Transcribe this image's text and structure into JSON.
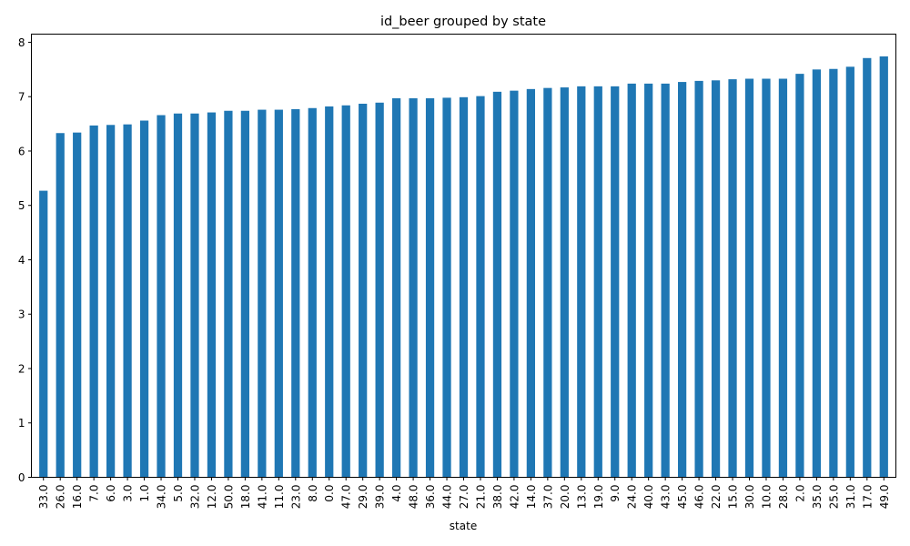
{
  "chart_data": {
    "type": "bar",
    "title": "id_beer grouped by state",
    "xlabel": "state",
    "ylabel": "",
    "ylim": [
      0,
      8.15
    ],
    "yticks": [
      0,
      1,
      2,
      3,
      4,
      5,
      6,
      7,
      8
    ],
    "bar_color": "#1f77b4",
    "grid": false,
    "categories": [
      "33.0",
      "26.0",
      "16.0",
      "7.0",
      "6.0",
      "3.0",
      "1.0",
      "34.0",
      "5.0",
      "32.0",
      "12.0",
      "50.0",
      "18.0",
      "41.0",
      "11.0",
      "23.0",
      "8.0",
      "0.0",
      "47.0",
      "29.0",
      "39.0",
      "4.0",
      "48.0",
      "36.0",
      "44.0",
      "27.0",
      "21.0",
      "38.0",
      "42.0",
      "14.0",
      "37.0",
      "20.0",
      "13.0",
      "19.0",
      "9.0",
      "24.0",
      "40.0",
      "43.0",
      "45.0",
      "46.0",
      "22.0",
      "15.0",
      "30.0",
      "10.0",
      "28.0",
      "2.0",
      "35.0",
      "25.0",
      "31.0",
      "17.0",
      "49.0"
    ],
    "values": [
      5.27,
      6.33,
      6.34,
      6.47,
      6.48,
      6.49,
      6.56,
      6.66,
      6.69,
      6.69,
      6.71,
      6.74,
      6.74,
      6.76,
      6.76,
      6.77,
      6.79,
      6.82,
      6.84,
      6.87,
      6.89,
      6.97,
      6.97,
      6.97,
      6.98,
      6.99,
      7.01,
      7.09,
      7.11,
      7.14,
      7.16,
      7.17,
      7.19,
      7.19,
      7.19,
      7.24,
      7.24,
      7.24,
      7.27,
      7.29,
      7.3,
      7.32,
      7.33,
      7.33,
      7.33,
      7.42,
      7.5,
      7.51,
      7.55,
      7.71,
      7.74
    ]
  }
}
